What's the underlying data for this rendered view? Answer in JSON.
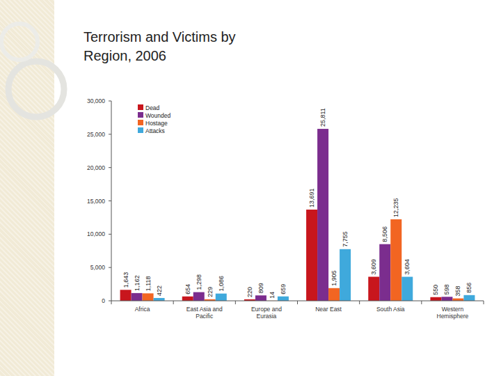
{
  "chart_data": {
    "type": "bar",
    "title": "Terrorism and Victims by Region, 2006",
    "categories": [
      "Africa",
      "East Asia and Pacific",
      "Europe and Eurasia",
      "Near East",
      "South Asia",
      "Western Hemisphere"
    ],
    "series": [
      {
        "name": "Dead",
        "color": "#c8161d",
        "values": [
          1643,
          654,
          220,
          13691,
          3609,
          550
        ],
        "value_labels": [
          "1,643",
          "654",
          "220",
          "13,691",
          "3,609",
          "550"
        ]
      },
      {
        "name": "Wounded",
        "color": "#7b2d8e",
        "values": [
          1162,
          1298,
          809,
          25811,
          8506,
          598
        ],
        "value_labels": [
          "1,162",
          "1,298",
          "809",
          "25,811",
          "8,506",
          "598"
        ]
      },
      {
        "name": "Hostage",
        "color": "#f26522",
        "values": [
          1118,
          229,
          14,
          1905,
          12235,
          358
        ],
        "value_labels": [
          "1,118",
          "229",
          "14",
          "1,905",
          "12,235",
          "358"
        ]
      },
      {
        "name": "Attacks",
        "color": "#3fa9dc",
        "values": [
          422,
          1086,
          659,
          7755,
          3604,
          856
        ],
        "value_labels": [
          "422",
          "1,086",
          "659",
          "7,755",
          "3,604",
          "856"
        ]
      }
    ],
    "ylim": [
      0,
      30000
    ],
    "yticks": [
      0,
      {
        "value": 5000,
        "label": "5,000"
      },
      {
        "value": 10000,
        "label": "10,000"
      },
      {
        "value": 15000,
        "label": "15,000"
      },
      {
        "value": 20000,
        "label": "20,000"
      },
      {
        "value": 25000,
        "label": "25,000"
      },
      {
        "value": 30000,
        "label": "30,000"
      }
    ],
    "grid": false,
    "legend": "upper left",
    "data_labels": true
  }
}
